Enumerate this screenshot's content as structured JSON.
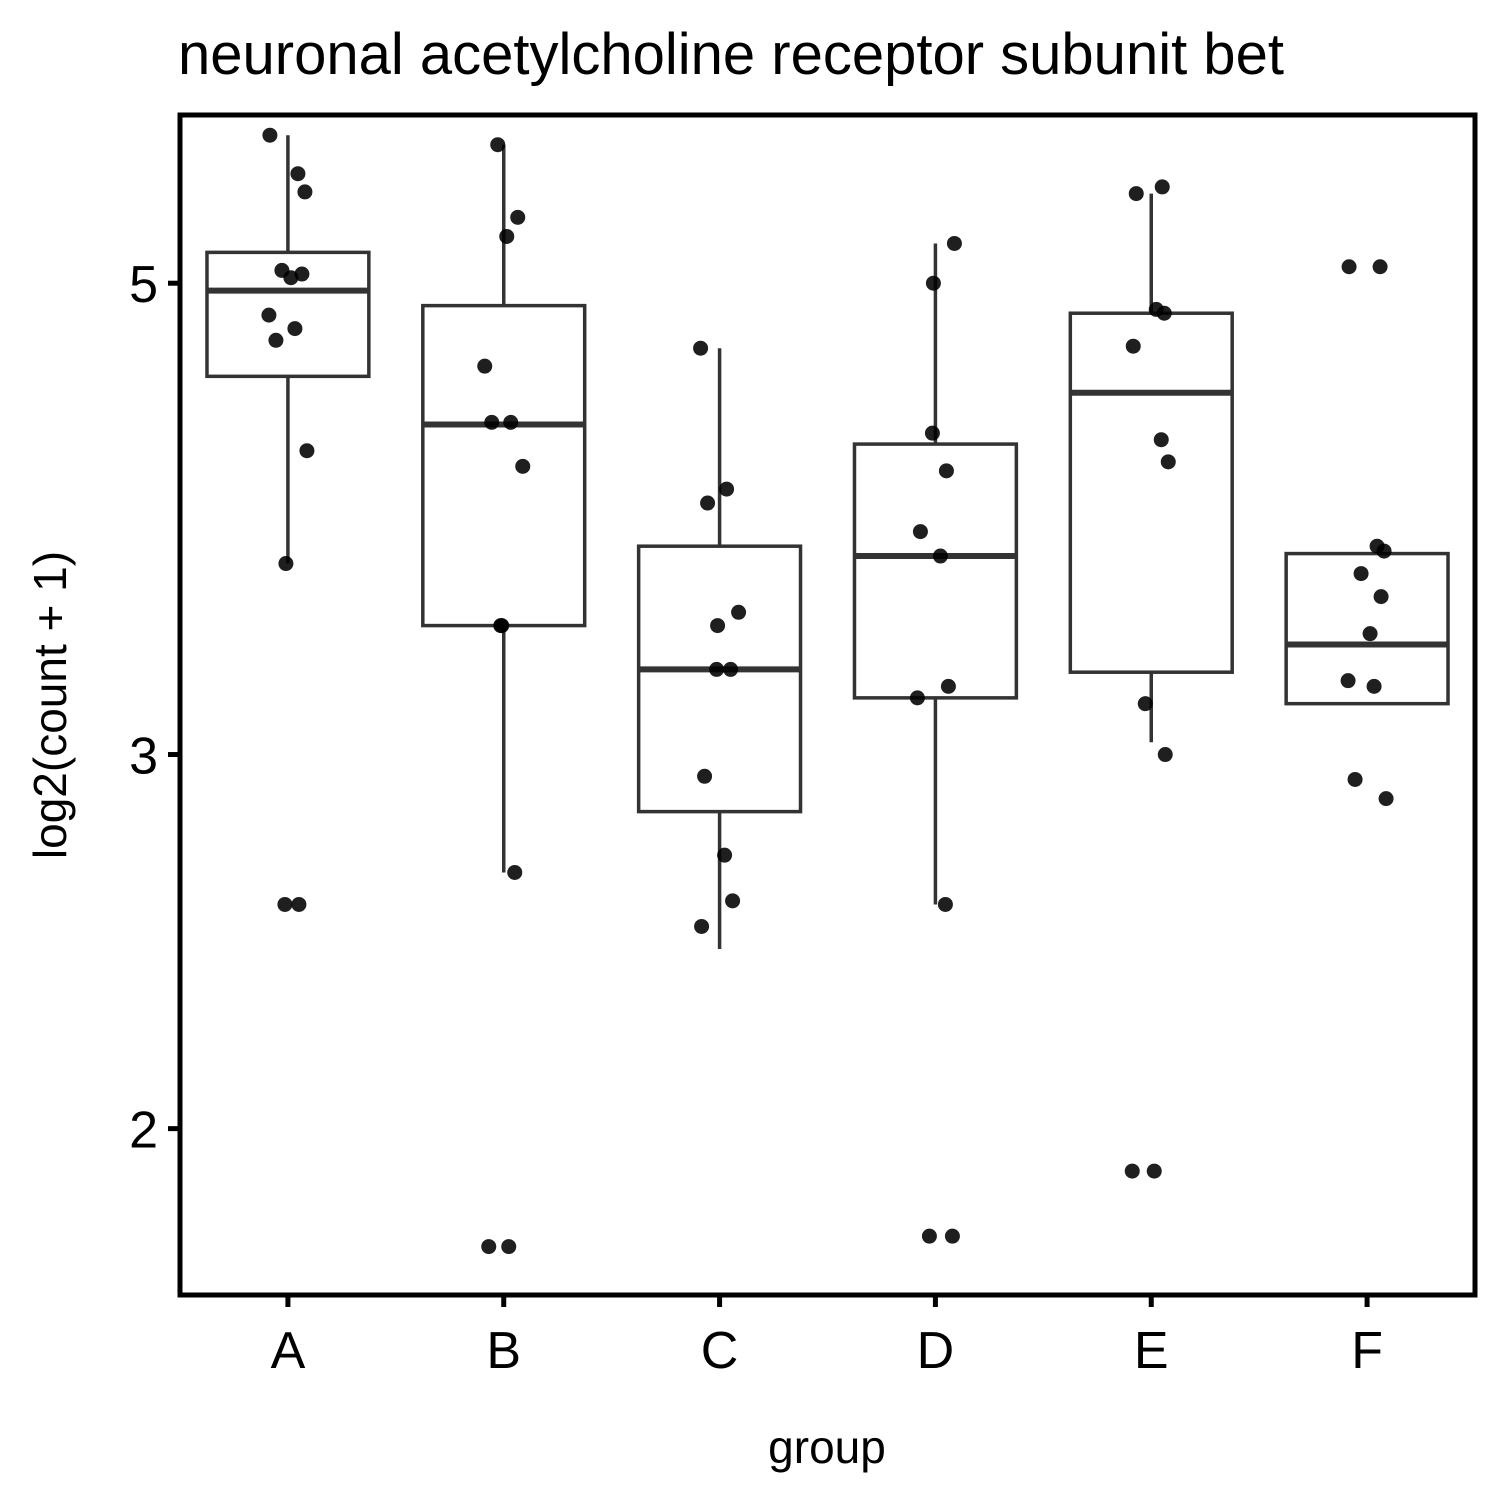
{
  "chart_data": {
    "type": "box",
    "title": "neuronal acetylcholine receptor subunit bet",
    "xlabel": "group",
    "ylabel": "log2(count + 1)",
    "y_scale": "log",
    "ylim": [
      1.67,
      6.0
    ],
    "yticks": [
      2,
      3,
      5
    ],
    "grid": false,
    "legend": "none",
    "categories": [
      "A",
      "B",
      "C",
      "D",
      "E",
      "F"
    ],
    "boxes": [
      {
        "group": "A",
        "whisker_low": 3.69,
        "q1": 4.52,
        "median": 4.96,
        "q3": 5.17,
        "whisker_high": 5.87
      },
      {
        "group": "B",
        "whisker_low": 2.64,
        "q1": 3.45,
        "median": 4.29,
        "q3": 4.88,
        "whisker_high": 5.81
      },
      {
        "group": "C",
        "whisker_low": 2.43,
        "q1": 2.82,
        "median": 3.29,
        "q3": 3.76,
        "whisker_high": 4.66
      },
      {
        "group": "D",
        "whisker_low": 2.55,
        "q1": 3.19,
        "median": 3.72,
        "q3": 4.2,
        "whisker_high": 5.22
      },
      {
        "group": "E",
        "whisker_low": 3.04,
        "q1": 3.28,
        "median": 4.44,
        "q3": 4.84,
        "whisker_high": 5.51
      },
      {
        "group": "F",
        "whisker_low": 3.17,
        "q1": 3.17,
        "median": 3.38,
        "q3": 3.73,
        "whisker_high": 3.73
      }
    ],
    "points": [
      {
        "group": "A",
        "values": [
          5.87,
          5.63,
          5.52,
          5.07,
          5.05,
          5.03,
          4.83,
          4.76,
          4.7,
          4.17,
          3.69,
          2.55,
          2.55
        ]
      },
      {
        "group": "B",
        "values": [
          5.81,
          5.37,
          5.26,
          4.57,
          4.3,
          4.3,
          4.1,
          3.45,
          3.45,
          2.64,
          1.76,
          1.76
        ]
      },
      {
        "group": "C",
        "values": [
          4.66,
          4.0,
          3.94,
          3.5,
          3.45,
          3.29,
          3.29,
          2.93,
          2.69,
          2.56,
          2.49
        ]
      },
      {
        "group": "D",
        "values": [
          5.22,
          5.0,
          4.25,
          4.08,
          3.82,
          3.72,
          3.23,
          3.19,
          2.55,
          1.78,
          1.78
        ]
      },
      {
        "group": "E",
        "values": [
          5.55,
          5.51,
          4.86,
          4.84,
          4.67,
          4.22,
          4.12,
          3.17,
          3.0,
          1.91,
          1.91
        ]
      },
      {
        "group": "F",
        "values": [
          5.09,
          5.09,
          3.76,
          3.74,
          3.65,
          3.56,
          3.42,
          3.25,
          3.23,
          2.92,
          2.86
        ]
      }
    ]
  }
}
